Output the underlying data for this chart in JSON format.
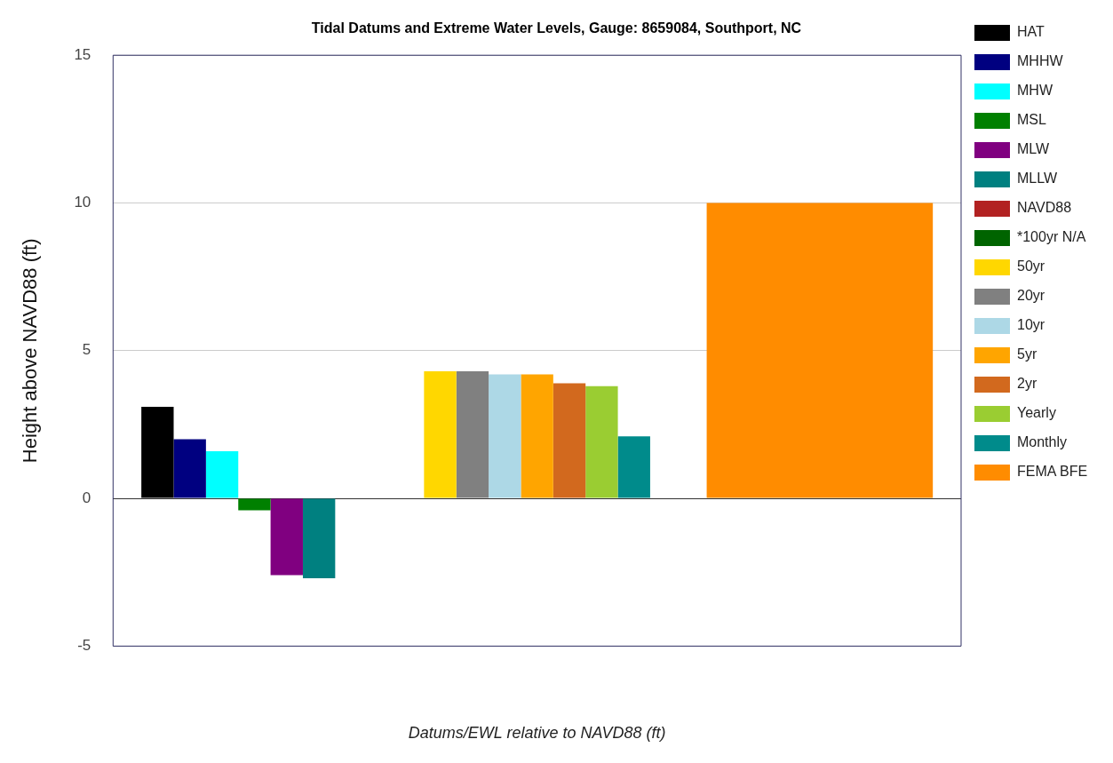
{
  "chart_data": {
    "type": "bar",
    "title": "Tidal Datums and Extreme Water Levels, Gauge: 8659084, Southport, NC",
    "xlabel": "Datums/EWL relative to NAVD88 (ft)",
    "ylabel": "Height above NAVD88 (ft)",
    "categories": [
      null,
      null,
      null
    ],
    "series": [
      {
        "name": "HAT",
        "color": "#000000",
        "values": [
          3.1,
          null,
          null
        ]
      },
      {
        "name": "MHHW",
        "color": "#000080",
        "values": [
          2.0,
          null,
          null
        ]
      },
      {
        "name": "MHW",
        "color": "#00ffff",
        "values": [
          1.6,
          null,
          null
        ]
      },
      {
        "name": "MSL",
        "color": "#008000",
        "values": [
          -0.4,
          null,
          null
        ]
      },
      {
        "name": "MLW",
        "color": "#800080",
        "values": [
          -2.6,
          null,
          null
        ]
      },
      {
        "name": "MLLW",
        "color": "#008080",
        "values": [
          -2.7,
          null,
          null
        ]
      },
      {
        "name": "NAVD88",
        "color": "#b22222",
        "values": [
          0,
          null,
          null
        ]
      },
      {
        "name": "*100yr N/A",
        "color": "#006400",
        "values": [
          null,
          null,
          null
        ]
      },
      {
        "name": "50yr",
        "color": "#ffd700",
        "values": [
          null,
          4.3,
          null
        ]
      },
      {
        "name": "20yr",
        "color": "#808080",
        "values": [
          null,
          4.3,
          null
        ]
      },
      {
        "name": "10yr",
        "color": "#add8e6",
        "values": [
          null,
          4.2,
          null
        ]
      },
      {
        "name": "5yr",
        "color": "#ffa500",
        "values": [
          null,
          4.2,
          null
        ]
      },
      {
        "name": "2yr",
        "color": "#d2691e",
        "values": [
          null,
          3.9,
          null
        ]
      },
      {
        "name": "Yearly",
        "color": "#9acd32",
        "values": [
          null,
          3.8,
          null
        ]
      },
      {
        "name": "Monthly",
        "color": "#008b8b",
        "values": [
          null,
          2.1,
          null
        ]
      },
      {
        "name": "FEMA BFE",
        "color": "#ff8c00",
        "values": [
          null,
          null,
          10
        ]
      }
    ],
    "ylim": [
      -5,
      15
    ],
    "yticks": [
      -5,
      0,
      5,
      10,
      15
    ],
    "grid": "y",
    "legend": "right",
    "tick_labels": "y"
  }
}
